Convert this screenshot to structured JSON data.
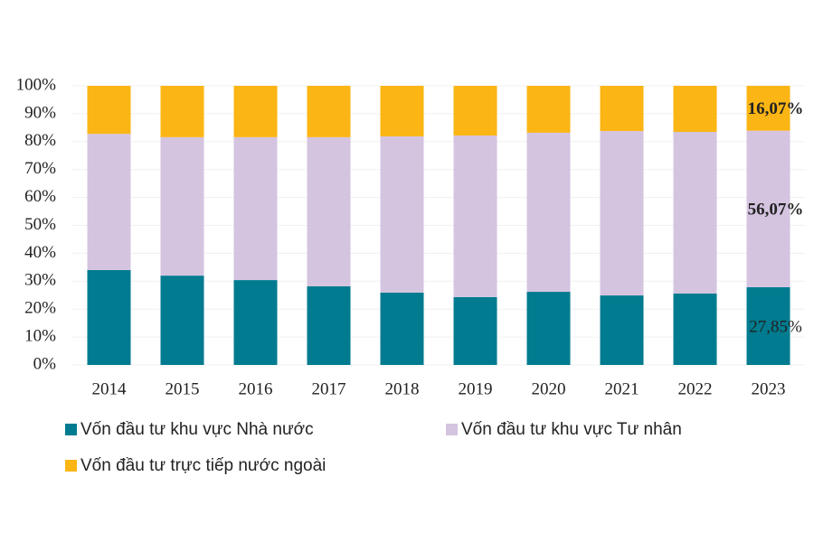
{
  "chart_data": {
    "type": "stacked_bar_100",
    "categories": [
      "2014",
      "2015",
      "2016",
      "2017",
      "2018",
      "2019",
      "2020",
      "2021",
      "2022",
      "2023"
    ],
    "series": [
      {
        "name": "Vốn đầu tư khu vực Nhà nước",
        "color": "#007b8f",
        "values": [
          34.0,
          32.0,
          30.4,
          28.2,
          25.9,
          24.3,
          26.2,
          24.9,
          25.6,
          27.85
        ],
        "value_labels": [
          null,
          null,
          null,
          null,
          null,
          null,
          null,
          null,
          null,
          "27,85%"
        ]
      },
      {
        "name": "Vốn đầu tư khu vực Tư nhân",
        "color": "#d4c4e0",
        "values": [
          48.8,
          49.6,
          51.2,
          53.4,
          56.0,
          57.9,
          57.0,
          58.9,
          57.9,
          56.07
        ],
        "value_labels": [
          null,
          null,
          null,
          null,
          null,
          null,
          null,
          null,
          null,
          "56,07%"
        ]
      },
      {
        "name": "Vốn đầu tư trực tiếp nước ngoài",
        "color": "#fbb514",
        "values": [
          17.2,
          18.4,
          18.4,
          18.4,
          18.1,
          17.8,
          16.8,
          16.2,
          16.5,
          16.07
        ],
        "value_labels": [
          null,
          null,
          null,
          null,
          null,
          null,
          null,
          null,
          null,
          "16,07%"
        ]
      }
    ],
    "ylim": [
      0,
      100
    ],
    "yticks": [
      {
        "value": 0,
        "label": "0%"
      },
      {
        "value": 10,
        "label": "10%"
      },
      {
        "value": 20,
        "label": "20%"
      },
      {
        "value": 30,
        "label": "30%"
      },
      {
        "value": 40,
        "label": "40%"
      },
      {
        "value": 50,
        "label": "50%"
      },
      {
        "value": 60,
        "label": "60%"
      },
      {
        "value": 70,
        "label": "70%"
      },
      {
        "value": 80,
        "label": "80%"
      },
      {
        "value": 90,
        "label": "90%"
      },
      {
        "value": 100,
        "label": "100%"
      }
    ],
    "grid": true
  }
}
